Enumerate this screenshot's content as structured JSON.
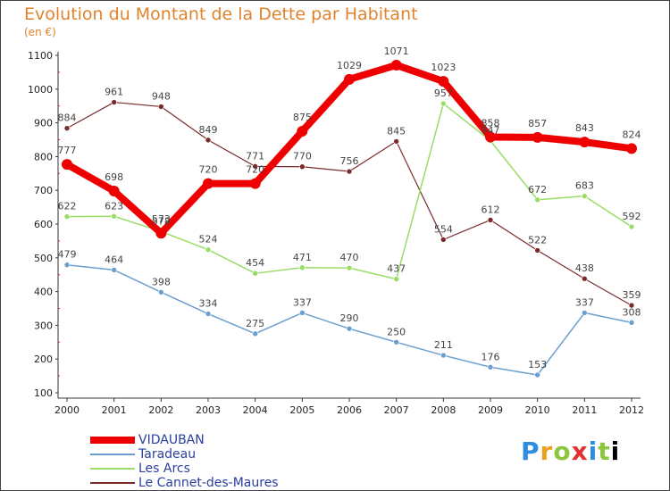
{
  "chart_data": {
    "type": "line",
    "title": "Evolution du Montant de la Dette par Habitant",
    "subtitle": "(en €)",
    "x": [
      "2000",
      "2001",
      "2002",
      "2003",
      "2004",
      "2005",
      "2006",
      "2007",
      "2008",
      "2009",
      "2010",
      "2011",
      "2012"
    ],
    "ylim": [
      100,
      1100
    ],
    "yticks": [
      100,
      200,
      300,
      400,
      500,
      600,
      700,
      800,
      900,
      1000,
      1100
    ],
    "grid": false,
    "legend_position": "bottom-left",
    "series": [
      {
        "name": "VIDAUBAN",
        "color": "#ee0000",
        "width": 8,
        "values": [
          777,
          698,
          573,
          720,
          720,
          875,
          1029,
          1071,
          1023,
          858,
          857,
          843,
          824
        ],
        "labels": [
          "777",
          "698",
          "573",
          "720",
          "720",
          "875",
          "1029",
          "1071",
          "1023",
          "858",
          "857",
          "843",
          "824"
        ]
      },
      {
        "name": "Taradeau",
        "color": "#6a9fd0",
        "width": 1.5,
        "values": [
          479,
          464,
          398,
          334,
          275,
          337,
          290,
          250,
          211,
          176,
          153,
          337,
          308
        ],
        "labels": [
          "479",
          "464",
          "398",
          "334",
          "275",
          "337",
          "290",
          "250",
          "211",
          "176",
          "153",
          "337",
          "308"
        ]
      },
      {
        "name": "Les Arcs",
        "color": "#99dd66",
        "width": 1.5,
        "values": [
          622,
          623,
          578,
          524,
          454,
          471,
          470,
          437,
          957,
          847,
          672,
          683,
          592
        ],
        "labels": [
          "622",
          "623",
          "578",
          "524",
          "454",
          "471",
          "470",
          "437",
          "957",
          "847",
          "672",
          "683",
          "592"
        ]
      },
      {
        "name": "Le Cannet-des-Maures",
        "color": "#7a2a2a",
        "width": 1.2,
        "values": [
          884,
          961,
          948,
          849,
          771,
          770,
          756,
          845,
          554,
          612,
          522,
          438,
          359
        ],
        "labels": [
          "884",
          "961",
          "948",
          "849",
          "771",
          "770",
          "756",
          "845",
          "554",
          "612",
          "522",
          "438",
          "359"
        ]
      }
    ]
  },
  "logo": {
    "letters": [
      "P",
      "r",
      "o",
      "x",
      "i",
      "t",
      "i"
    ]
  }
}
